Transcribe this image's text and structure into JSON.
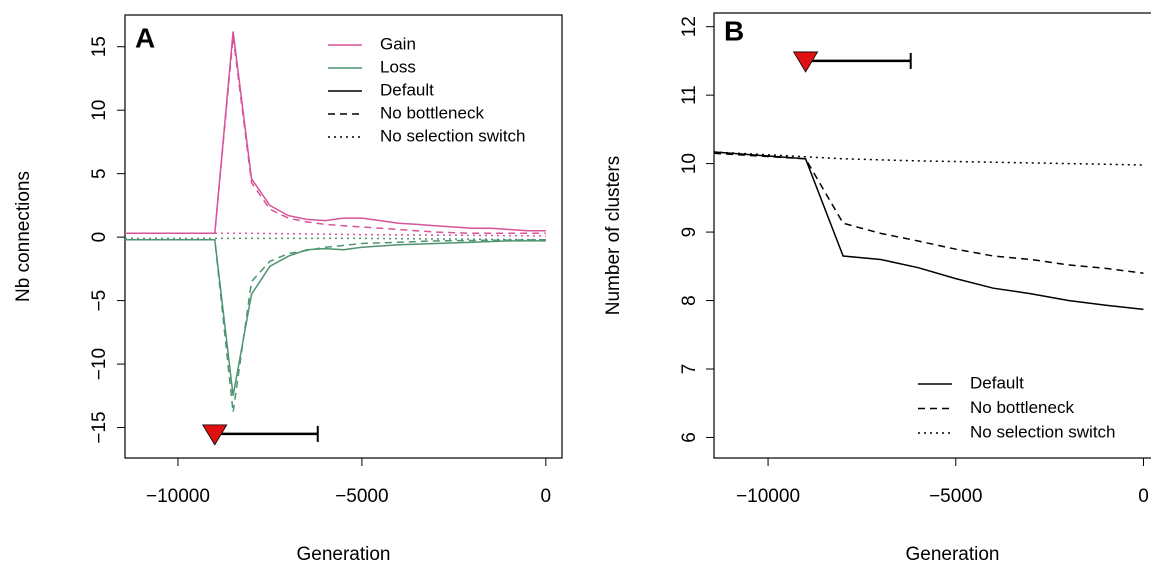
{
  "chart_data": [
    {
      "type": "line",
      "panel_label": "A",
      "xlabel": "Generation",
      "ylabel": "Nb connections",
      "xlim": [
        -11440,
        440
      ],
      "ylim": [
        -17.4,
        17.5
      ],
      "xticks": [
        {
          "value": -10000,
          "label": "−10000"
        },
        {
          "value": -5000,
          "label": "−5000"
        },
        0
      ],
      "yticks": [
        {
          "value": -15,
          "label": "−15"
        },
        {
          "value": -10,
          "label": "−10"
        },
        {
          "value": -5,
          "label": "−5"
        },
        0,
        5,
        10,
        15
      ],
      "legend_position": "top-right",
      "legend": [
        {
          "label": "Gain",
          "color": "#d6549a",
          "linestyle": "solid"
        },
        {
          "label": "Loss",
          "color": "#4f9470",
          "linestyle": "solid"
        },
        {
          "label": "Default",
          "color": "#000000",
          "linestyle": "solid"
        },
        {
          "label": "No bottleneck",
          "color": "#000000",
          "linestyle": "dashed"
        },
        {
          "label": "No selection switch",
          "color": "#000000",
          "linestyle": "dotted"
        }
      ],
      "series": [
        {
          "color": "#d6549a",
          "linestyle": "solid",
          "x": [
            -11440,
            -9000,
            -8500,
            -8000,
            -7500,
            -7000,
            -6500,
            -6000,
            -5500,
            -5000,
            -4500,
            -4000,
            -3500,
            -3000,
            -2500,
            -2000,
            -1500,
            -1000,
            -500,
            0
          ],
          "values": [
            0.3,
            0.3,
            16.2,
            4.6,
            2.5,
            1.7,
            1.4,
            1.3,
            1.5,
            1.5,
            1.3,
            1.1,
            1.0,
            0.9,
            0.8,
            0.7,
            0.7,
            0.6,
            0.5,
            0.5
          ]
        },
        {
          "color": "#d6549a",
          "linestyle": "dashed",
          "x": [
            -11440,
            -9000,
            -8500,
            -8000,
            -7500,
            -7000,
            -6500,
            -6000,
            -5000,
            -4000,
            -3000,
            -2000,
            -1000,
            0
          ],
          "values": [
            0.3,
            0.3,
            15.8,
            4.3,
            2.2,
            1.5,
            1.2,
            1.0,
            0.8,
            0.6,
            0.4,
            0.3,
            0.3,
            0.3
          ]
        },
        {
          "color": "#d6549a",
          "linestyle": "dotted",
          "x": [
            -11440,
            -9000,
            -8000,
            -5000,
            0
          ],
          "values": [
            0.3,
            0.3,
            0.3,
            0.2,
            0.1
          ]
        },
        {
          "color": "#4f9470",
          "linestyle": "solid",
          "x": [
            -11440,
            -9000,
            -8500,
            -8000,
            -7500,
            -7000,
            -6500,
            -6000,
            -5500,
            -5000,
            -4000,
            -3000,
            -2000,
            -1000,
            0
          ],
          "values": [
            -0.2,
            -0.2,
            -12.5,
            -4.5,
            -2.3,
            -1.5,
            -1.0,
            -0.9,
            -1.0,
            -0.8,
            -0.6,
            -0.5,
            -0.4,
            -0.3,
            -0.3
          ]
        },
        {
          "color": "#4f9470",
          "linestyle": "dashed",
          "x": [
            -11440,
            -9000,
            -8500,
            -8000,
            -7500,
            -7000,
            -6000,
            -5000,
            -4000,
            -3000,
            0
          ],
          "values": [
            -0.2,
            -0.2,
            -13.8,
            -3.5,
            -1.9,
            -1.3,
            -0.8,
            -0.5,
            -0.4,
            -0.3,
            -0.2
          ]
        },
        {
          "color": "#4f9470",
          "linestyle": "dotted",
          "x": [
            -11440,
            -9000,
            -5000,
            0
          ],
          "values": [
            -0.1,
            -0.1,
            -0.1,
            -0.2
          ]
        }
      ],
      "bottleneck": {
        "x": -9000,
        "end": -6200,
        "y": -15.5,
        "color": "#e01010"
      }
    },
    {
      "type": "line",
      "panel_label": "B",
      "xlabel": "Generation",
      "ylabel": "Number of clusters",
      "xlim": [
        -11440,
        440
      ],
      "ylim": [
        5.7,
        12.2
      ],
      "xticks": [
        {
          "value": -10000,
          "label": "−10000"
        },
        {
          "value": -5000,
          "label": "−5000"
        },
        0
      ],
      "yticks": [
        6,
        7,
        8,
        9,
        10,
        11,
        12
      ],
      "legend_position": "bottom-right",
      "legend": [
        {
          "label": "Default",
          "color": "#000000",
          "linestyle": "solid"
        },
        {
          "label": "No bottleneck",
          "color": "#000000",
          "linestyle": "dashed"
        },
        {
          "label": "No selection switch",
          "color": "#000000",
          "linestyle": "dotted"
        }
      ],
      "series": [
        {
          "color": "#000000",
          "linestyle": "solid",
          "x": [
            -11440,
            -9000,
            -8000,
            -7000,
            -6000,
            -5000,
            -4000,
            -3000,
            -2000,
            -1000,
            0
          ],
          "values": [
            10.17,
            10.07,
            8.65,
            8.6,
            8.48,
            8.32,
            8.18,
            8.1,
            8.0,
            7.93,
            7.87
          ]
        },
        {
          "color": "#000000",
          "linestyle": "dashed",
          "x": [
            -11440,
            -9000,
            -8000,
            -7000,
            -6000,
            -5000,
            -4000,
            -3000,
            -2000,
            -1000,
            0
          ],
          "values": [
            10.15,
            10.07,
            9.13,
            8.98,
            8.87,
            8.75,
            8.65,
            8.6,
            8.52,
            8.47,
            8.4
          ]
        },
        {
          "color": "#000000",
          "linestyle": "dotted",
          "x": [
            -11440,
            -9000,
            -8000,
            -6000,
            -4000,
            -2000,
            0
          ],
          "values": [
            10.17,
            10.1,
            10.07,
            10.04,
            10.02,
            10.0,
            9.98
          ]
        }
      ],
      "bottleneck": {
        "x": -9000,
        "end": -6200,
        "y": 11.5,
        "color": "#e01010"
      }
    }
  ]
}
